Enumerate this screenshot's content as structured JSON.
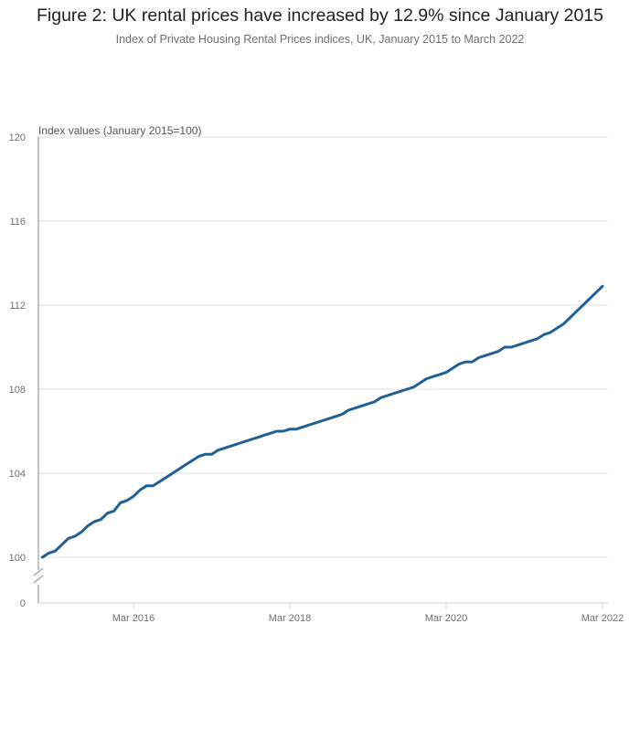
{
  "chart_data": {
    "type": "line",
    "title": "Figure 2: UK rental prices have increased by 12.9% since January 2015",
    "subtitle": "Index of Private Housing Rental Prices indices, UK, January 2015 to March 2022",
    "ylabel": "Index values (January 2015=100)",
    "xlabel": "",
    "ylim": [
      100,
      120
    ],
    "y_axis_break": true,
    "y_ticks": [
      0,
      100,
      104,
      108,
      112,
      116,
      120
    ],
    "x_ticks": [
      "Mar 2016",
      "Mar 2018",
      "Mar 2020",
      "Mar 2022"
    ],
    "grid": "horizontal",
    "line_color": "#206095",
    "x": [
      "2015-01",
      "2015-02",
      "2015-03",
      "2015-04",
      "2015-05",
      "2015-06",
      "2015-07",
      "2015-08",
      "2015-09",
      "2015-10",
      "2015-11",
      "2015-12",
      "2016-01",
      "2016-02",
      "2016-03",
      "2016-04",
      "2016-05",
      "2016-06",
      "2016-07",
      "2016-08",
      "2016-09",
      "2016-10",
      "2016-11",
      "2016-12",
      "2017-01",
      "2017-02",
      "2017-03",
      "2017-04",
      "2017-05",
      "2017-06",
      "2017-07",
      "2017-08",
      "2017-09",
      "2017-10",
      "2017-11",
      "2017-12",
      "2018-01",
      "2018-02",
      "2018-03",
      "2018-04",
      "2018-05",
      "2018-06",
      "2018-07",
      "2018-08",
      "2018-09",
      "2018-10",
      "2018-11",
      "2018-12",
      "2019-01",
      "2019-02",
      "2019-03",
      "2019-04",
      "2019-05",
      "2019-06",
      "2019-07",
      "2019-08",
      "2019-09",
      "2019-10",
      "2019-11",
      "2019-12",
      "2020-01",
      "2020-02",
      "2020-03",
      "2020-04",
      "2020-05",
      "2020-06",
      "2020-07",
      "2020-08",
      "2020-09",
      "2020-10",
      "2020-11",
      "2020-12",
      "2021-01",
      "2021-02",
      "2021-03",
      "2021-04",
      "2021-05",
      "2021-06",
      "2021-07",
      "2021-08",
      "2021-09",
      "2021-10",
      "2021-11",
      "2021-12",
      "2022-01",
      "2022-02",
      "2022-03"
    ],
    "values": [
      100.0,
      100.2,
      100.3,
      100.6,
      100.9,
      101.0,
      101.2,
      101.5,
      101.7,
      101.8,
      102.1,
      102.2,
      102.6,
      102.7,
      102.9,
      103.2,
      103.4,
      103.4,
      103.6,
      103.8,
      104.0,
      104.2,
      104.4,
      104.6,
      104.8,
      104.9,
      104.9,
      105.1,
      105.2,
      105.3,
      105.4,
      105.5,
      105.6,
      105.7,
      105.8,
      105.9,
      106.0,
      106.0,
      106.1,
      106.1,
      106.2,
      106.3,
      106.4,
      106.5,
      106.6,
      106.7,
      106.8,
      107.0,
      107.1,
      107.2,
      107.3,
      107.4,
      107.6,
      107.7,
      107.8,
      107.9,
      108.0,
      108.1,
      108.3,
      108.5,
      108.6,
      108.7,
      108.8,
      109.0,
      109.2,
      109.3,
      109.3,
      109.5,
      109.6,
      109.7,
      109.8,
      110.0,
      110.0,
      110.1,
      110.2,
      110.3,
      110.4,
      110.6,
      110.7,
      110.9,
      111.1,
      111.4,
      111.7,
      112.0,
      112.3,
      112.6,
      112.9
    ]
  }
}
